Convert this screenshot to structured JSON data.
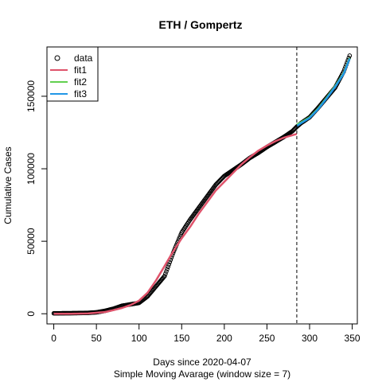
{
  "chart_data": {
    "type": "line",
    "title": "ETH / Gompertz",
    "xlabel": "Days since 2020-04-07",
    "xlabel_sub": "Simple Moving Avarage (window size = 7)",
    "ylabel": "Cumulative Cases",
    "xlim": [
      -8,
      356
    ],
    "ylim": [
      -7000,
      184000
    ],
    "x_ticks": [
      0,
      50,
      100,
      150,
      200,
      250,
      300,
      350
    ],
    "y_ticks": [
      0,
      50000,
      100000,
      150000
    ],
    "grid": false,
    "legend_position": "top-left",
    "vline_x": 285,
    "series": [
      {
        "name": "data",
        "style": "points",
        "color": "#000000",
        "x": [
          0,
          20,
          40,
          50,
          60,
          70,
          80,
          90,
          100,
          110,
          120,
          130,
          140,
          150,
          160,
          170,
          180,
          190,
          200,
          210,
          220,
          230,
          240,
          250,
          260,
          270,
          280,
          285,
          290,
          300,
          310,
          320,
          330,
          340,
          347
        ],
        "y": [
          300,
          400,
          600,
          1000,
          2000,
          3500,
          5500,
          6500,
          7500,
          12000,
          19000,
          26000,
          42000,
          56000,
          65000,
          73000,
          81000,
          89000,
          95000,
          99000,
          103000,
          107500,
          111000,
          115000,
          118500,
          122000,
          126000,
          129000,
          131500,
          135500,
          142000,
          149000,
          156000,
          167000,
          178000
        ]
      },
      {
        "name": "fit1",
        "style": "line",
        "color": "#DF536B",
        "x": [
          0,
          20,
          40,
          60,
          70,
          80,
          90,
          100,
          110,
          120,
          130,
          140,
          150,
          160,
          170,
          180,
          190,
          200,
          210,
          220,
          230,
          240,
          250,
          260,
          270,
          285
        ],
        "y": [
          0,
          0,
          200,
          1200,
          2500,
          4000,
          6000,
          9000,
          14500,
          23000,
          33000,
          43000,
          52000,
          60000,
          69000,
          77000,
          85000,
          91000,
          97000,
          103000,
          108000,
          112500,
          116000,
          119000,
          121500,
          124000
        ]
      },
      {
        "name": "fit2",
        "style": "line",
        "color": "#61D04F",
        "x": [
          285,
          290,
          300,
          310,
          320,
          330,
          340,
          347
        ],
        "y": [
          130500,
          132000,
          135500,
          141500,
          149000,
          157000,
          166000,
          176500
        ]
      },
      {
        "name": "fit3",
        "style": "line",
        "color": "#2297E6",
        "x": [
          285,
          290,
          300,
          310,
          320,
          330,
          340,
          347
        ],
        "y": [
          129500,
          131500,
          135000,
          141000,
          148500,
          156500,
          165500,
          176000
        ]
      }
    ]
  }
}
